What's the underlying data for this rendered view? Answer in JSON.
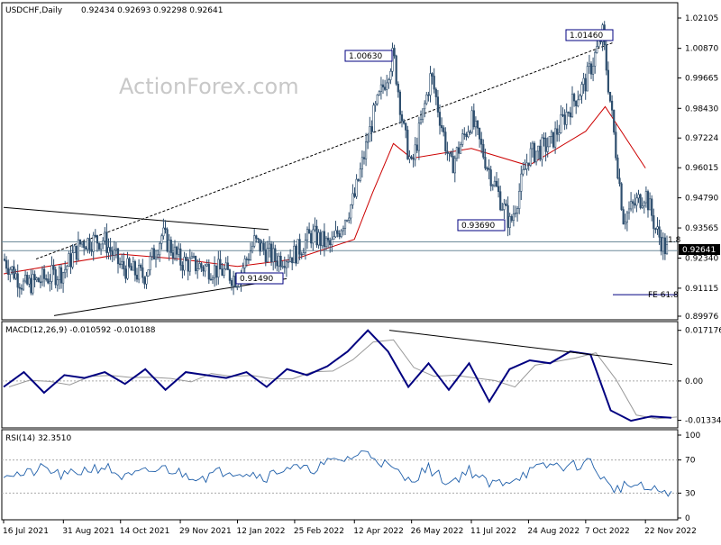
{
  "header": {
    "symbol": "USDCHF,Daily",
    "ohlc": "0.92434 0.92693 0.92298 0.92641"
  },
  "watermark": "ActionForex.com",
  "price_axis_ticks": [
    "1.02105",
    "1.00870",
    "0.99665",
    "0.98430",
    "0.97224",
    "0.96015",
    "0.94790",
    "0.93565",
    "0.92340",
    "0.91115",
    "0.89976"
  ],
  "current_price": "0.92641",
  "annotations": {
    "peak1": "1.00630",
    "peak2": "1.01460",
    "trough": "0.93690",
    "low": "0.91490",
    "fe_label": "FE 61.8",
    "level_label": "1.8"
  },
  "macd_panel": {
    "label": "MACD(12,26,9) -0.010592 -0.010188",
    "ticks": [
      "0.017176",
      "0.00",
      "-0.01334"
    ]
  },
  "rsi_panel": {
    "label": "RSI(14) 32.3510",
    "ticks": [
      "100",
      "70",
      "30",
      "0"
    ]
  },
  "date_ticks": [
    "16 Jul 2021",
    "31 Aug 2021",
    "14 Oct 2021",
    "29 Nov 2021",
    "12 Jan 2022",
    "25 Feb 2022",
    "12 Apr 2022",
    "26 May 2022",
    "11 Jul 2022",
    "24 Aug 2022",
    "7 Oct 2022",
    "22 Nov 2022"
  ],
  "chart_data": {
    "type": "candlestick",
    "x_range": [
      "16 Jul 2021",
      "Dec 2022"
    ],
    "price_ylim": [
      0.89976,
      1.02105
    ],
    "price_path": [
      {
        "x": "16 Jul 2021",
        "y": 0.923
      },
      {
        "x": "1 Aug 2021",
        "y": 0.912
      },
      {
        "x": "31 Aug 2021",
        "y": 0.918
      },
      {
        "x": "14 Sep 2021",
        "y": 0.93
      },
      {
        "x": "1 Oct 2021",
        "y": 0.931
      },
      {
        "x": "14 Oct 2021",
        "y": 0.92
      },
      {
        "x": "1 Nov 2021",
        "y": 0.916
      },
      {
        "x": "15 Nov 2021",
        "y": 0.933
      },
      {
        "x": "29 Nov 2021",
        "y": 0.922
      },
      {
        "x": "15 Dec 2021",
        "y": 0.92
      },
      {
        "x": "1 Jan 2022",
        "y": 0.918
      },
      {
        "x": "12 Jan 2022",
        "y": 0.9149
      },
      {
        "x": "25 Jan 2022",
        "y": 0.93
      },
      {
        "x": "10 Feb 2022",
        "y": 0.923
      },
      {
        "x": "25 Feb 2022",
        "y": 0.925
      },
      {
        "x": "10 Mar 2022",
        "y": 0.933
      },
      {
        "x": "25 Mar 2022",
        "y": 0.928
      },
      {
        "x": "12 Apr 2022",
        "y": 0.948
      },
      {
        "x": "26 Apr 2022",
        "y": 0.98
      },
      {
        "x": "12 May 2022",
        "y": 1.0063
      },
      {
        "x": "20 May 2022",
        "y": 0.975
      },
      {
        "x": "26 May 2022",
        "y": 0.96
      },
      {
        "x": "10 Jun 2022",
        "y": 0.998
      },
      {
        "x": "25 Jun 2022",
        "y": 0.96
      },
      {
        "x": "11 Jul 2022",
        "y": 0.98
      },
      {
        "x": "24 Jul 2022",
        "y": 0.96
      },
      {
        "x": "10 Aug 2022",
        "y": 0.9369
      },
      {
        "x": "24 Aug 2022",
        "y": 0.965
      },
      {
        "x": "10 Sep 2022",
        "y": 0.97
      },
      {
        "x": "25 Sep 2022",
        "y": 0.985
      },
      {
        "x": "7 Oct 2022",
        "y": 0.995
      },
      {
        "x": "20 Oct 2022",
        "y": 1.0146
      },
      {
        "x": "5 Nov 2022",
        "y": 0.94
      },
      {
        "x": "22 Nov 2022",
        "y": 0.95
      },
      {
        "x": "30 Nov 2022",
        "y": 0.935
      },
      {
        "x": "8 Dec 2022",
        "y": 0.9264
      }
    ],
    "sma": [
      {
        "x": "16 Jul 2021",
        "y": 0.917
      },
      {
        "x": "14 Oct 2021",
        "y": 0.925
      },
      {
        "x": "29 Nov 2021",
        "y": 0.923
      },
      {
        "x": "12 Jan 2022",
        "y": 0.92
      },
      {
        "x": "25 Feb 2022",
        "y": 0.923
      },
      {
        "x": "12 Apr 2022",
        "y": 0.931
      },
      {
        "x": "26 Apr 2022",
        "y": 0.95
      },
      {
        "x": "12 May 2022",
        "y": 0.97
      },
      {
        "x": "26 May 2022",
        "y": 0.964
      },
      {
        "x": "11 Jul 2022",
        "y": 0.968
      },
      {
        "x": "24 Aug 2022",
        "y": 0.961
      },
      {
        "x": "7 Oct 2022",
        "y": 0.975
      },
      {
        "x": "22 Oct 2022",
        "y": 0.985
      },
      {
        "x": "22 Nov 2022",
        "y": 0.96
      }
    ],
    "macd_ylim": [
      -0.015,
      0.018
    ],
    "macd_values": [
      -0.002,
      0.003,
      -0.004,
      0.002,
      0.001,
      0.003,
      -0.001,
      0.004,
      -0.003,
      0.003,
      0.002,
      0.001,
      0.003,
      -0.002,
      0.004,
      0.002,
      0.005,
      0.01,
      0.017176,
      0.01,
      -0.002,
      0.006,
      -0.003,
      0.006,
      -0.007,
      0.004,
      0.007,
      0.006,
      0.01,
      0.009,
      -0.01,
      -0.0135,
      -0.012,
      -0.0125
    ],
    "rsi_ylim": [
      0,
      100
    ],
    "rsi_values": [
      55,
      52,
      60,
      50,
      58,
      62,
      48,
      55,
      60,
      52,
      50,
      58,
      55,
      50,
      62,
      57,
      66,
      72,
      80,
      62,
      45,
      60,
      42,
      58,
      40,
      46,
      56,
      64,
      62,
      68,
      35,
      40,
      33,
      32.351
    ],
    "rsi_levels": [
      70,
      30
    ]
  },
  "colors": {
    "candle": "#2f4f6f",
    "sma": "#cc0000",
    "macd": "#000080",
    "signal": "#999999",
    "trendline": "#000000"
  }
}
